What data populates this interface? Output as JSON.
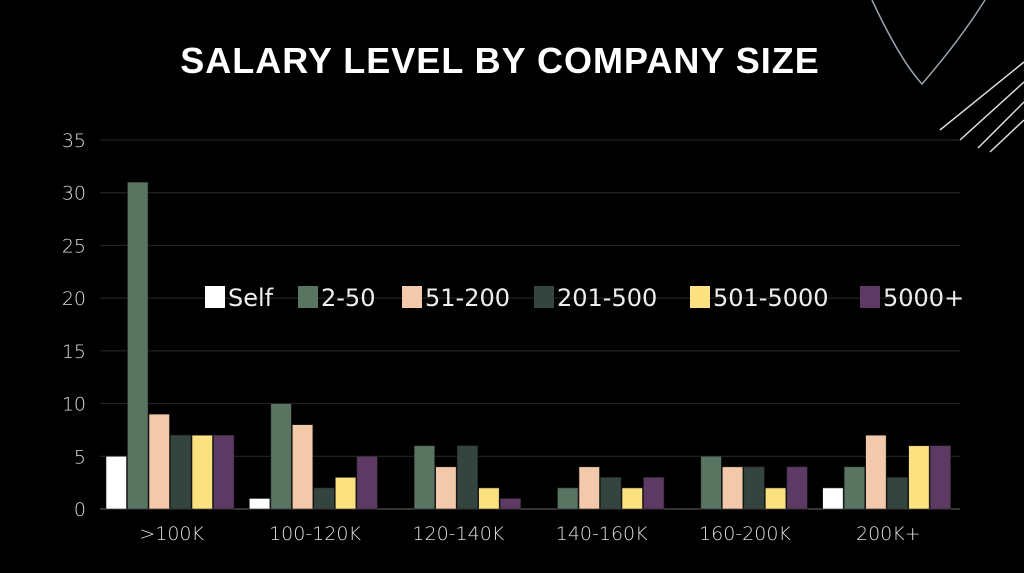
{
  "chart_data": {
    "type": "bar",
    "title": "SALARY LEVEL BY COMPANY SIZE",
    "categories": [
      ">100K",
      "100-120K",
      "120-140K",
      "140-160K",
      "160-200K",
      "200K+"
    ],
    "series": [
      {
        "name": "Self",
        "color": "#ffffff",
        "values": [
          5,
          1,
          0,
          0,
          0,
          2
        ]
      },
      {
        "name": "2-50",
        "color": "#5a7462",
        "values": [
          31,
          10,
          6,
          2,
          5,
          4
        ]
      },
      {
        "name": "51-200",
        "color": "#f2c9aa",
        "values": [
          9,
          8,
          4,
          4,
          4,
          7
        ]
      },
      {
        "name": "201-500",
        "color": "#34443e",
        "values": [
          7,
          2,
          6,
          3,
          4,
          3
        ]
      },
      {
        "name": "501-5000",
        "color": "#fbe180",
        "values": [
          7,
          3,
          2,
          2,
          2,
          6
        ]
      },
      {
        "name": "5000+",
        "color": "#5c3a63",
        "values": [
          7,
          5,
          1,
          3,
          4,
          6
        ]
      }
    ],
    "yticks": [
      "0",
      "5",
      "10",
      "15",
      "20",
      "25",
      "30",
      "35"
    ],
    "ylim": [
      0,
      35
    ],
    "grid": true,
    "legend": "inside-top, horizontal"
  }
}
